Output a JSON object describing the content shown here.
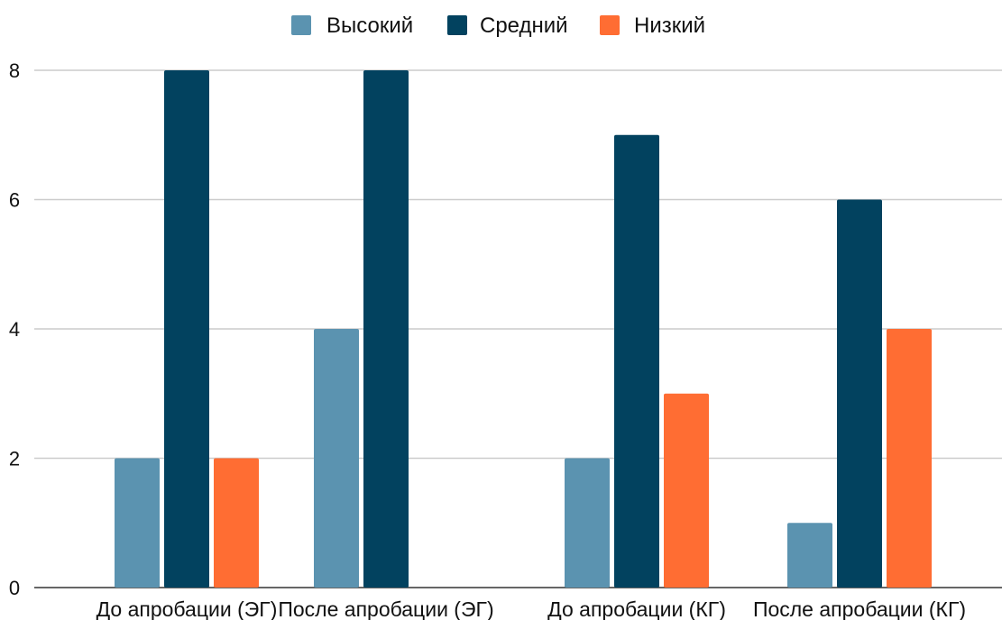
{
  "chart_data": {
    "type": "bar",
    "title": "",
    "xlabel": "",
    "ylabel": "",
    "categories": [
      "До апробации (ЭГ)",
      "После апробации (ЭГ)",
      "До апробации (КГ)",
      "После апробации (КГ)"
    ],
    "series": [
      {
        "name": "Высокий",
        "color": "#5b93b0",
        "values": [
          2,
          4,
          2,
          1
        ]
      },
      {
        "name": "Средний",
        "color": "#02425f",
        "values": [
          8,
          8,
          7,
          6
        ]
      },
      {
        "name": "Низкий",
        "color": "#ff6d33",
        "values": [
          2,
          0,
          3,
          4
        ]
      }
    ],
    "ylim": [
      0,
      8
    ],
    "yticks": [
      "0",
      "2",
      "4",
      "6",
      "8"
    ],
    "grid": true,
    "legend_position": "top-center"
  }
}
